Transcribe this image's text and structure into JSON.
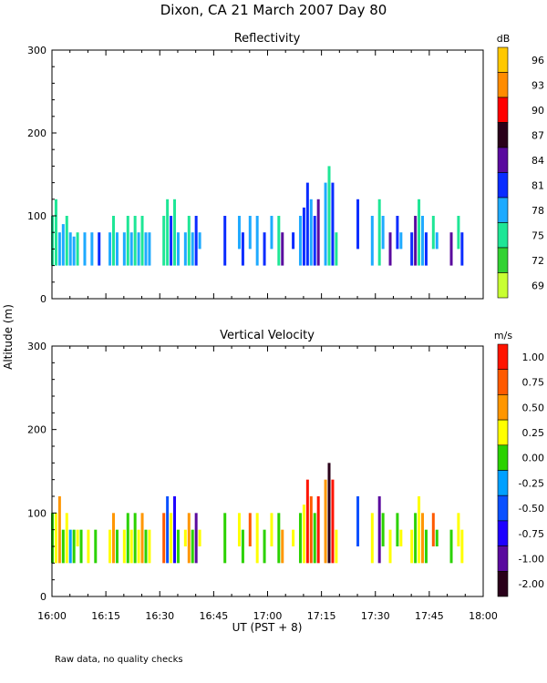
{
  "page": {
    "title": "Dixon, CA 21 March 2007  Day  80",
    "ylabel": "Altitude (m)",
    "xlabel": "UT  (PST + 8)",
    "footnote": "Raw data, no quality checks"
  },
  "chart_data": [
    {
      "type": "heatmap",
      "title": "Reflectivity",
      "units": "dB",
      "xlim": [
        "16:00",
        "18:00"
      ],
      "xticks": [
        "16:00",
        "16:15",
        "16:30",
        "16:45",
        "17:00",
        "17:15",
        "17:30",
        "17:45",
        "18:00"
      ],
      "ylim": [
        0,
        300
      ],
      "yticks": [
        0,
        100,
        200,
        300
      ],
      "colorbar": {
        "labels": [
          "96",
          "93",
          "90",
          "87",
          "84",
          "81",
          "78",
          "75",
          "72",
          "69"
        ],
        "colors": [
          "#ffc800",
          "#ff8c00",
          "#ff0000",
          "#2a001a",
          "#5a0a9e",
          "#0a2cff",
          "#1eaaff",
          "#1ee696",
          "#32d232",
          "#c8ff32"
        ]
      },
      "columns": [
        {
          "t": "16:00",
          "bot": 40,
          "top": 100,
          "c": "#1ee696"
        },
        {
          "t": "16:01",
          "bot": 40,
          "top": 120,
          "c": "#1ee696"
        },
        {
          "t": "16:02",
          "bot": 40,
          "top": 80,
          "c": "#1eaaff"
        },
        {
          "t": "16:03",
          "bot": 40,
          "top": 90,
          "c": "#1eaaff"
        },
        {
          "t": "16:04",
          "bot": 40,
          "top": 100,
          "c": "#1ee696"
        },
        {
          "t": "16:05",
          "bot": 40,
          "top": 80,
          "c": "#1eaaff"
        },
        {
          "t": "16:06",
          "bot": 40,
          "top": 75,
          "c": "#1eaaff"
        },
        {
          "t": "16:07",
          "bot": 40,
          "top": 80,
          "c": "#1ee696"
        },
        {
          "t": "16:09",
          "bot": 40,
          "top": 80,
          "c": "#1eaaff"
        },
        {
          "t": "16:11",
          "bot": 40,
          "top": 80,
          "c": "#1eaaff"
        },
        {
          "t": "16:13",
          "bot": 40,
          "top": 80,
          "c": "#0a2cff"
        },
        {
          "t": "16:16",
          "bot": 40,
          "top": 80,
          "c": "#1eaaff"
        },
        {
          "t": "16:17",
          "bot": 40,
          "top": 100,
          "c": "#1ee696"
        },
        {
          "t": "16:18",
          "bot": 40,
          "top": 80,
          "c": "#1eaaff"
        },
        {
          "t": "16:20",
          "bot": 40,
          "top": 80,
          "c": "#1eaaff"
        },
        {
          "t": "16:21",
          "bot": 40,
          "top": 100,
          "c": "#1ee696"
        },
        {
          "t": "16:22",
          "bot": 40,
          "top": 80,
          "c": "#1eaaff"
        },
        {
          "t": "16:23",
          "bot": 40,
          "top": 100,
          "c": "#1ee696"
        },
        {
          "t": "16:24",
          "bot": 40,
          "top": 80,
          "c": "#1eaaff"
        },
        {
          "t": "16:25",
          "bot": 40,
          "top": 100,
          "c": "#1ee696"
        },
        {
          "t": "16:26",
          "bot": 40,
          "top": 80,
          "c": "#1eaaff"
        },
        {
          "t": "16:27",
          "bot": 40,
          "top": 80,
          "c": "#1eaaff"
        },
        {
          "t": "16:31",
          "bot": 40,
          "top": 100,
          "c": "#1ee696"
        },
        {
          "t": "16:32",
          "bot": 40,
          "top": 120,
          "c": "#1ee696"
        },
        {
          "t": "16:33",
          "bot": 40,
          "top": 100,
          "c": "#0a2cff"
        },
        {
          "t": "16:34",
          "bot": 40,
          "top": 120,
          "c": "#1ee696"
        },
        {
          "t": "16:35",
          "bot": 40,
          "top": 80,
          "c": "#1eaaff"
        },
        {
          "t": "16:37",
          "bot": 40,
          "top": 80,
          "c": "#1eaaff"
        },
        {
          "t": "16:38",
          "bot": 40,
          "top": 100,
          "c": "#1ee696"
        },
        {
          "t": "16:39",
          "bot": 40,
          "top": 80,
          "c": "#1eaaff"
        },
        {
          "t": "16:40",
          "bot": 40,
          "top": 100,
          "c": "#0a2cff"
        },
        {
          "t": "16:41",
          "bot": 60,
          "top": 80,
          "c": "#1eaaff"
        },
        {
          "t": "16:48",
          "bot": 40,
          "top": 100,
          "c": "#0a2cff"
        },
        {
          "t": "16:52",
          "bot": 60,
          "top": 100,
          "c": "#1eaaff"
        },
        {
          "t": "16:53",
          "bot": 40,
          "top": 80,
          "c": "#0a2cff"
        },
        {
          "t": "16:55",
          "bot": 60,
          "top": 100,
          "c": "#1eaaff"
        },
        {
          "t": "16:57",
          "bot": 40,
          "top": 100,
          "c": "#1eaaff"
        },
        {
          "t": "16:59",
          "bot": 40,
          "top": 80,
          "c": "#0a2cff"
        },
        {
          "t": "17:01",
          "bot": 60,
          "top": 100,
          "c": "#1eaaff"
        },
        {
          "t": "17:03",
          "bot": 40,
          "top": 100,
          "c": "#1ee696"
        },
        {
          "t": "17:04",
          "bot": 40,
          "top": 80,
          "c": "#5a0a9e"
        },
        {
          "t": "17:07",
          "bot": 60,
          "top": 80,
          "c": "#0a2cff"
        },
        {
          "t": "17:09",
          "bot": 40,
          "top": 100,
          "c": "#1eaaff"
        },
        {
          "t": "17:10",
          "bot": 40,
          "top": 110,
          "c": "#0a2cff"
        },
        {
          "t": "17:11",
          "bot": 40,
          "top": 140,
          "c": "#0a2cff"
        },
        {
          "t": "17:12",
          "bot": 40,
          "top": 120,
          "c": "#1eaaff"
        },
        {
          "t": "17:13",
          "bot": 40,
          "top": 100,
          "c": "#0a2cff"
        },
        {
          "t": "17:14",
          "bot": 40,
          "top": 120,
          "c": "#5a0a9e"
        },
        {
          "t": "17:16",
          "bot": 40,
          "top": 140,
          "c": "#1eaaff"
        },
        {
          "t": "17:17",
          "bot": 40,
          "top": 160,
          "c": "#1ee696"
        },
        {
          "t": "17:18",
          "bot": 40,
          "top": 140,
          "c": "#0a2cff"
        },
        {
          "t": "17:19",
          "bot": 40,
          "top": 80,
          "c": "#1ee696"
        },
        {
          "t": "17:25",
          "bot": 60,
          "top": 120,
          "c": "#0a2cff"
        },
        {
          "t": "17:29",
          "bot": 40,
          "top": 100,
          "c": "#1eaaff"
        },
        {
          "t": "17:31",
          "bot": 40,
          "top": 120,
          "c": "#1ee696"
        },
        {
          "t": "17:32",
          "bot": 60,
          "top": 100,
          "c": "#1eaaff"
        },
        {
          "t": "17:34",
          "bot": 40,
          "top": 80,
          "c": "#5a0a9e"
        },
        {
          "t": "17:36",
          "bot": 60,
          "top": 100,
          "c": "#0a2cff"
        },
        {
          "t": "17:37",
          "bot": 60,
          "top": 80,
          "c": "#1eaaff"
        },
        {
          "t": "17:40",
          "bot": 40,
          "top": 80,
          "c": "#0a2cff"
        },
        {
          "t": "17:41",
          "bot": 40,
          "top": 100,
          "c": "#5a0a9e"
        },
        {
          "t": "17:42",
          "bot": 40,
          "top": 120,
          "c": "#1ee696"
        },
        {
          "t": "17:43",
          "bot": 40,
          "top": 100,
          "c": "#1eaaff"
        },
        {
          "t": "17:44",
          "bot": 40,
          "top": 80,
          "c": "#0a2cff"
        },
        {
          "t": "17:46",
          "bot": 60,
          "top": 100,
          "c": "#1ee696"
        },
        {
          "t": "17:47",
          "bot": 60,
          "top": 80,
          "c": "#1eaaff"
        },
        {
          "t": "17:51",
          "bot": 40,
          "top": 80,
          "c": "#5a0a9e"
        },
        {
          "t": "17:53",
          "bot": 60,
          "top": 100,
          "c": "#1ee696"
        },
        {
          "t": "17:54",
          "bot": 40,
          "top": 80,
          "c": "#0a2cff"
        }
      ]
    },
    {
      "type": "heatmap",
      "title": "Vertical Velocity",
      "units": "m/s",
      "xlim": [
        "16:00",
        "18:00"
      ],
      "xticks": [
        "16:00",
        "16:15",
        "16:30",
        "16:45",
        "17:00",
        "17:15",
        "17:30",
        "17:45",
        "18:00"
      ],
      "ylim": [
        0,
        300
      ],
      "yticks": [
        0,
        100,
        200,
        300
      ],
      "colorbar": {
        "labels": [
          "1.00",
          "0.75",
          "0.50",
          "0.25",
          "0.00",
          "-0.25",
          "-0.50",
          "-0.75",
          "-1.00",
          "-2.00"
        ],
        "colors": [
          "#ff1400",
          "#ff5a00",
          "#ff9600",
          "#ffff00",
          "#2bd200",
          "#00a0ff",
          "#0a50ff",
          "#1e00ff",
          "#5a0a9e",
          "#2a001a"
        ]
      },
      "columns": [
        {
          "t": "16:00",
          "bot": 40,
          "top": 100,
          "c": "#2bd200"
        },
        {
          "t": "16:01",
          "bot": 40,
          "top": 100,
          "c": "#ffff00"
        },
        {
          "t": "16:02",
          "bot": 40,
          "top": 120,
          "c": "#ff9600"
        },
        {
          "t": "16:03",
          "bot": 40,
          "top": 80,
          "c": "#2bd200"
        },
        {
          "t": "16:04",
          "bot": 40,
          "top": 100,
          "c": "#ffff00"
        },
        {
          "t": "16:05",
          "bot": 40,
          "top": 80,
          "c": "#00a0ff"
        },
        {
          "t": "16:06",
          "bot": 40,
          "top": 80,
          "c": "#2bd200"
        },
        {
          "t": "16:07",
          "bot": 60,
          "top": 80,
          "c": "#ffff00"
        },
        {
          "t": "16:08",
          "bot": 40,
          "top": 80,
          "c": "#2bd200"
        },
        {
          "t": "16:10",
          "bot": 40,
          "top": 80,
          "c": "#ffff00"
        },
        {
          "t": "16:12",
          "bot": 40,
          "top": 80,
          "c": "#2bd200"
        },
        {
          "t": "16:16",
          "bot": 40,
          "top": 80,
          "c": "#ffff00"
        },
        {
          "t": "16:17",
          "bot": 40,
          "top": 100,
          "c": "#ff9600"
        },
        {
          "t": "16:18",
          "bot": 40,
          "top": 80,
          "c": "#2bd200"
        },
        {
          "t": "16:20",
          "bot": 40,
          "top": 80,
          "c": "#ffff00"
        },
        {
          "t": "16:21",
          "bot": 40,
          "top": 100,
          "c": "#2bd200"
        },
        {
          "t": "16:22",
          "bot": 40,
          "top": 80,
          "c": "#ffff00"
        },
        {
          "t": "16:23",
          "bot": 40,
          "top": 100,
          "c": "#2bd200"
        },
        {
          "t": "16:24",
          "bot": 40,
          "top": 80,
          "c": "#ffff00"
        },
        {
          "t": "16:25",
          "bot": 40,
          "top": 100,
          "c": "#ff9600"
        },
        {
          "t": "16:26",
          "bot": 40,
          "top": 80,
          "c": "#2bd200"
        },
        {
          "t": "16:27",
          "bot": 40,
          "top": 80,
          "c": "#ffff00"
        },
        {
          "t": "16:31",
          "bot": 40,
          "top": 100,
          "c": "#ff5a00"
        },
        {
          "t": "16:32",
          "bot": 40,
          "top": 120,
          "c": "#0a50ff"
        },
        {
          "t": "16:33",
          "bot": 40,
          "top": 100,
          "c": "#ffff00"
        },
        {
          "t": "16:34",
          "bot": 40,
          "top": 120,
          "c": "#1e00ff"
        },
        {
          "t": "16:35",
          "bot": 40,
          "top": 80,
          "c": "#2bd200"
        },
        {
          "t": "16:37",
          "bot": 60,
          "top": 80,
          "c": "#ffff00"
        },
        {
          "t": "16:38",
          "bot": 40,
          "top": 100,
          "c": "#ff9600"
        },
        {
          "t": "16:39",
          "bot": 40,
          "top": 80,
          "c": "#2bd200"
        },
        {
          "t": "16:40",
          "bot": 40,
          "top": 100,
          "c": "#5a0a9e"
        },
        {
          "t": "16:41",
          "bot": 60,
          "top": 80,
          "c": "#ffff00"
        },
        {
          "t": "16:48",
          "bot": 40,
          "top": 100,
          "c": "#2bd200"
        },
        {
          "t": "16:52",
          "bot": 60,
          "top": 100,
          "c": "#ffff00"
        },
        {
          "t": "16:53",
          "bot": 40,
          "top": 80,
          "c": "#2bd200"
        },
        {
          "t": "16:55",
          "bot": 60,
          "top": 100,
          "c": "#ff5a00"
        },
        {
          "t": "16:57",
          "bot": 40,
          "top": 100,
          "c": "#ffff00"
        },
        {
          "t": "16:59",
          "bot": 40,
          "top": 80,
          "c": "#2bd200"
        },
        {
          "t": "17:01",
          "bot": 60,
          "top": 100,
          "c": "#ffff00"
        },
        {
          "t": "17:03",
          "bot": 40,
          "top": 100,
          "c": "#2bd200"
        },
        {
          "t": "17:04",
          "bot": 40,
          "top": 80,
          "c": "#ff9600"
        },
        {
          "t": "17:07",
          "bot": 60,
          "top": 80,
          "c": "#ffff00"
        },
        {
          "t": "17:09",
          "bot": 40,
          "top": 100,
          "c": "#2bd200"
        },
        {
          "t": "17:10",
          "bot": 40,
          "top": 110,
          "c": "#ffff00"
        },
        {
          "t": "17:11",
          "bot": 40,
          "top": 140,
          "c": "#ff1400"
        },
        {
          "t": "17:12",
          "bot": 40,
          "top": 120,
          "c": "#ff5a00"
        },
        {
          "t": "17:13",
          "bot": 40,
          "top": 100,
          "c": "#2bd200"
        },
        {
          "t": "17:14",
          "bot": 40,
          "top": 120,
          "c": "#ff1400"
        },
        {
          "t": "17:16",
          "bot": 40,
          "top": 140,
          "c": "#ff9600"
        },
        {
          "t": "17:17",
          "bot": 40,
          "top": 160,
          "c": "#2a001a"
        },
        {
          "t": "17:18",
          "bot": 40,
          "top": 140,
          "c": "#ff1400"
        },
        {
          "t": "17:19",
          "bot": 40,
          "top": 80,
          "c": "#ffff00"
        },
        {
          "t": "17:25",
          "bot": 60,
          "top": 120,
          "c": "#0a50ff"
        },
        {
          "t": "17:29",
          "bot": 40,
          "top": 100,
          "c": "#ffff00"
        },
        {
          "t": "17:31",
          "bot": 40,
          "top": 120,
          "c": "#5a0a9e"
        },
        {
          "t": "17:32",
          "bot": 60,
          "top": 100,
          "c": "#2bd200"
        },
        {
          "t": "17:34",
          "bot": 40,
          "top": 80,
          "c": "#ffff00"
        },
        {
          "t": "17:36",
          "bot": 60,
          "top": 100,
          "c": "#2bd200"
        },
        {
          "t": "17:37",
          "bot": 60,
          "top": 80,
          "c": "#ffff00"
        },
        {
          "t": "17:40",
          "bot": 40,
          "top": 80,
          "c": "#ffff00"
        },
        {
          "t": "17:41",
          "bot": 40,
          "top": 100,
          "c": "#2bd200"
        },
        {
          "t": "17:42",
          "bot": 40,
          "top": 120,
          "c": "#ffff00"
        },
        {
          "t": "17:43",
          "bot": 40,
          "top": 100,
          "c": "#ff9600"
        },
        {
          "t": "17:44",
          "bot": 40,
          "top": 80,
          "c": "#2bd200"
        },
        {
          "t": "17:46",
          "bot": 60,
          "top": 100,
          "c": "#ff5a00"
        },
        {
          "t": "17:47",
          "bot": 60,
          "top": 80,
          "c": "#2bd200"
        },
        {
          "t": "17:51",
          "bot": 40,
          "top": 80,
          "c": "#2bd200"
        },
        {
          "t": "17:53",
          "bot": 60,
          "top": 100,
          "c": "#ffff00"
        },
        {
          "t": "17:54",
          "bot": 40,
          "top": 80,
          "c": "#ffff00"
        }
      ]
    }
  ]
}
